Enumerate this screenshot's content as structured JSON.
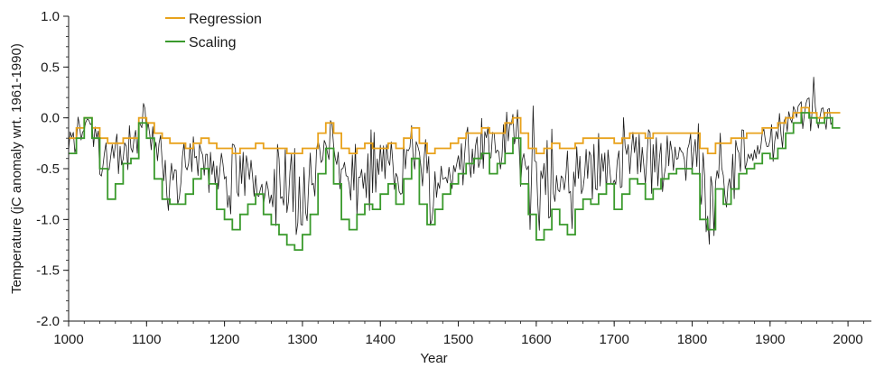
{
  "chart_data": {
    "type": "line",
    "title": "",
    "xlabel": "Year",
    "ylabel": "Temperature (jC anomaly wrt. 1961-1990)",
    "xlim": [
      1000,
      2030
    ],
    "ylim": [
      -2.0,
      1.0
    ],
    "x_ticks": [
      1000,
      1100,
      1200,
      1300,
      1400,
      1500,
      1600,
      1700,
      1800,
      1900,
      2000
    ],
    "y_ticks": [
      1.0,
      0.5,
      0.0,
      -0.5,
      -1.0,
      -1.5,
      -2.0
    ],
    "y_tick_labels": [
      "1.0",
      "0.5",
      "0.0",
      "-0.5",
      "-1.0",
      "-1.5",
      "-2.0"
    ],
    "grid": false,
    "legend_position": "top-left",
    "legend": [
      "Regression",
      "Scaling"
    ],
    "series": [
      {
        "name": "Regression",
        "color": "#e8a21c",
        "step": true,
        "x": [
          1000,
          1010,
          1020,
          1030,
          1040,
          1050,
          1060,
          1070,
          1080,
          1090,
          1100,
          1110,
          1120,
          1130,
          1140,
          1150,
          1160,
          1170,
          1180,
          1190,
          1200,
          1210,
          1220,
          1230,
          1240,
          1250,
          1260,
          1270,
          1280,
          1290,
          1300,
          1310,
          1320,
          1330,
          1340,
          1350,
          1360,
          1370,
          1380,
          1390,
          1400,
          1410,
          1420,
          1430,
          1440,
          1450,
          1460,
          1470,
          1480,
          1490,
          1500,
          1510,
          1520,
          1530,
          1540,
          1550,
          1560,
          1570,
          1580,
          1590,
          1600,
          1610,
          1620,
          1630,
          1640,
          1650,
          1660,
          1670,
          1680,
          1690,
          1700,
          1710,
          1720,
          1730,
          1740,
          1750,
          1760,
          1770,
          1780,
          1790,
          1800,
          1810,
          1820,
          1830,
          1840,
          1850,
          1860,
          1870,
          1880,
          1890,
          1900,
          1910,
          1920,
          1930,
          1940,
          1950,
          1960,
          1970,
          1980
        ],
        "values": [
          -0.2,
          -0.1,
          0.0,
          -0.1,
          -0.2,
          -0.25,
          -0.25,
          -0.2,
          -0.2,
          0.0,
          -0.05,
          -0.15,
          -0.2,
          -0.25,
          -0.25,
          -0.3,
          -0.25,
          -0.2,
          -0.25,
          -0.3,
          -0.3,
          -0.35,
          -0.3,
          -0.3,
          -0.25,
          -0.3,
          -0.3,
          -0.3,
          -0.35,
          -0.35,
          -0.3,
          -0.3,
          -0.15,
          -0.05,
          -0.15,
          -0.3,
          -0.35,
          -0.3,
          -0.25,
          -0.3,
          -0.3,
          -0.25,
          -0.3,
          -0.2,
          -0.1,
          -0.25,
          -0.35,
          -0.3,
          -0.3,
          -0.25,
          -0.2,
          -0.15,
          -0.15,
          -0.1,
          -0.15,
          -0.15,
          -0.05,
          0.0,
          -0.15,
          -0.3,
          -0.35,
          -0.3,
          -0.25,
          -0.3,
          -0.3,
          -0.25,
          -0.2,
          -0.2,
          -0.2,
          -0.2,
          -0.25,
          -0.2,
          -0.15,
          -0.15,
          -0.2,
          -0.15,
          -0.15,
          -0.15,
          -0.15,
          -0.15,
          -0.15,
          -0.3,
          -0.35,
          -0.25,
          -0.25,
          -0.2,
          -0.2,
          -0.15,
          -0.15,
          -0.1,
          -0.1,
          -0.05,
          0.0,
          0.05,
          0.1,
          0.05,
          0.0,
          0.05,
          0.05
        ]
      },
      {
        "name": "Scaling",
        "color": "#3a9a2c",
        "step": true,
        "x": [
          1000,
          1010,
          1020,
          1030,
          1040,
          1050,
          1060,
          1070,
          1080,
          1090,
          1100,
          1110,
          1120,
          1130,
          1140,
          1150,
          1160,
          1170,
          1180,
          1190,
          1200,
          1210,
          1220,
          1230,
          1240,
          1250,
          1260,
          1270,
          1280,
          1290,
          1300,
          1310,
          1320,
          1330,
          1340,
          1350,
          1360,
          1370,
          1380,
          1390,
          1400,
          1410,
          1420,
          1430,
          1440,
          1450,
          1460,
          1470,
          1480,
          1490,
          1500,
          1510,
          1520,
          1530,
          1540,
          1550,
          1560,
          1570,
          1580,
          1590,
          1600,
          1610,
          1620,
          1630,
          1640,
          1650,
          1660,
          1670,
          1680,
          1690,
          1700,
          1710,
          1720,
          1730,
          1740,
          1750,
          1760,
          1770,
          1780,
          1790,
          1800,
          1810,
          1820,
          1830,
          1840,
          1850,
          1860,
          1870,
          1880,
          1890,
          1900,
          1910,
          1920,
          1930,
          1940,
          1950,
          1960,
          1970,
          1980
        ],
        "values": [
          -0.35,
          -0.2,
          0.0,
          -0.2,
          -0.5,
          -0.8,
          -0.65,
          -0.45,
          -0.4,
          -0.05,
          -0.2,
          -0.6,
          -0.8,
          -0.85,
          -0.85,
          -0.75,
          -0.6,
          -0.5,
          -0.65,
          -0.9,
          -1.0,
          -1.1,
          -0.95,
          -0.85,
          -0.75,
          -0.95,
          -1.05,
          -1.15,
          -1.25,
          -1.3,
          -1.15,
          -0.95,
          -0.55,
          -0.3,
          -0.65,
          -1.0,
          -1.1,
          -0.95,
          -0.85,
          -0.9,
          -0.75,
          -0.65,
          -0.85,
          -0.6,
          -0.4,
          -0.85,
          -1.05,
          -0.9,
          -0.75,
          -0.65,
          -0.55,
          -0.45,
          -0.4,
          -0.35,
          -0.55,
          -0.45,
          -0.35,
          -0.2,
          -0.65,
          -0.95,
          -1.2,
          -1.1,
          -0.9,
          -1.05,
          -1.15,
          -0.9,
          -0.8,
          -0.85,
          -0.75,
          -0.65,
          -0.9,
          -0.75,
          -0.6,
          -0.65,
          -0.8,
          -0.7,
          -0.6,
          -0.55,
          -0.5,
          -0.5,
          -0.55,
          -1.0,
          -1.1,
          -0.7,
          -0.85,
          -0.7,
          -0.55,
          -0.5,
          -0.45,
          -0.35,
          -0.4,
          -0.3,
          -0.15,
          -0.05,
          0.05,
          0.0,
          -0.05,
          0.0,
          -0.1
        ]
      }
    ],
    "reconstruction_color": "#1a1a1a"
  }
}
